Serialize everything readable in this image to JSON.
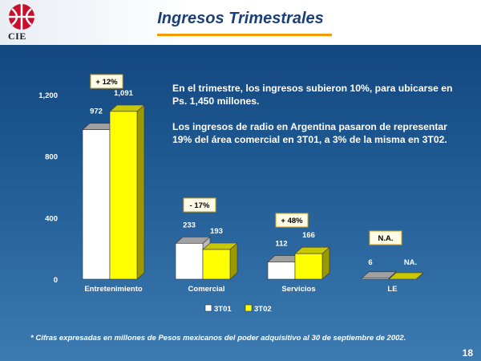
{
  "logo": {
    "text": "CIE"
  },
  "slide": {
    "title": "Ingresos Trimestrales",
    "notes": [
      "En el trimestre, los ingresos subieron 10%, para ubicarse en Ps. 1,450 millones.",
      "Los ingresos de radio en Argentina pasaron de representar 19% del área comercial en 3T01, a 3% de la misma en 3T02."
    ],
    "footnote": "* Cifras expresadas en millones de Pesos mexicanos del poder adquisitivo al 30 de septiembre de 2002.",
    "page_number": "18"
  },
  "chart_data": {
    "type": "bar",
    "categories": [
      "Entretenimiento",
      "Comercial",
      "Servicios",
      "LE"
    ],
    "series": [
      {
        "name": "3T01",
        "values": [
          972,
          233,
          112,
          6
        ],
        "color": "#ffffff",
        "side_color": "#b9b9b9",
        "top_color": "#a0a0a0"
      },
      {
        "name": "3T02",
        "values": [
          1091,
          193,
          166,
          null
        ],
        "color": "#ffff00",
        "side_color": "#9a9a00",
        "top_color": "#c8c800"
      }
    ],
    "value_labels": [
      [
        "972",
        "1,091"
      ],
      [
        "233",
        "193"
      ],
      [
        "112",
        "166"
      ],
      [
        "6",
        "NA."
      ]
    ],
    "change_badges": [
      "+ 12%",
      "- 17%",
      "+ 48%",
      "N.A."
    ],
    "y_ticks": [
      "0",
      "400",
      "800",
      "1,200"
    ],
    "ylim": [
      0,
      1200
    ],
    "legend_position": "bottom-center",
    "grid": false,
    "colors": {
      "badge_bg": "#fffbe6",
      "badge_border": "#d4a017"
    }
  }
}
